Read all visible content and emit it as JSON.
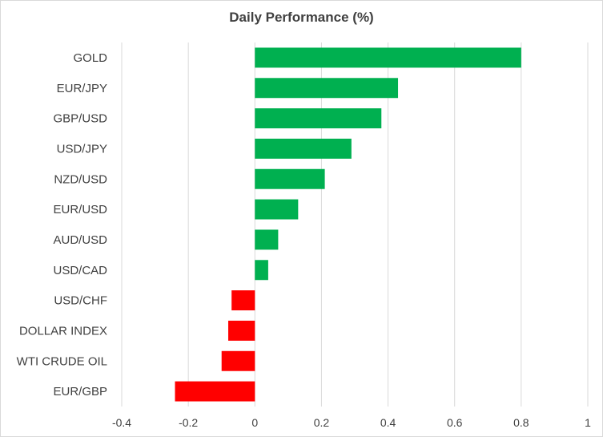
{
  "chart_data": {
    "type": "bar",
    "orientation": "horizontal",
    "title": "Daily Performance  (%)",
    "categories": [
      "GOLD",
      "EUR/JPY",
      "GBP/USD",
      "USD/JPY",
      "NZD/USD",
      "EUR/USD",
      "AUD/USD",
      "USD/CAD",
      "USD/CHF",
      "DOLLAR INDEX",
      "WTI CRUDE OIL",
      "EUR/GBP"
    ],
    "values": [
      0.8,
      0.43,
      0.38,
      0.29,
      0.21,
      0.13,
      0.07,
      0.04,
      -0.07,
      -0.08,
      -0.1,
      -0.24
    ],
    "xlim": [
      -0.4,
      1
    ],
    "xticks": [
      "-0.4",
      "-0.2",
      "0",
      "0.2",
      "0.4",
      "0.6",
      "0.8",
      "1"
    ],
    "grid": "vertical gridlines",
    "legend": "none",
    "colors": {
      "positive": "#00b050",
      "negative": "#ff0000",
      "grid": "#d9d9d9"
    }
  }
}
